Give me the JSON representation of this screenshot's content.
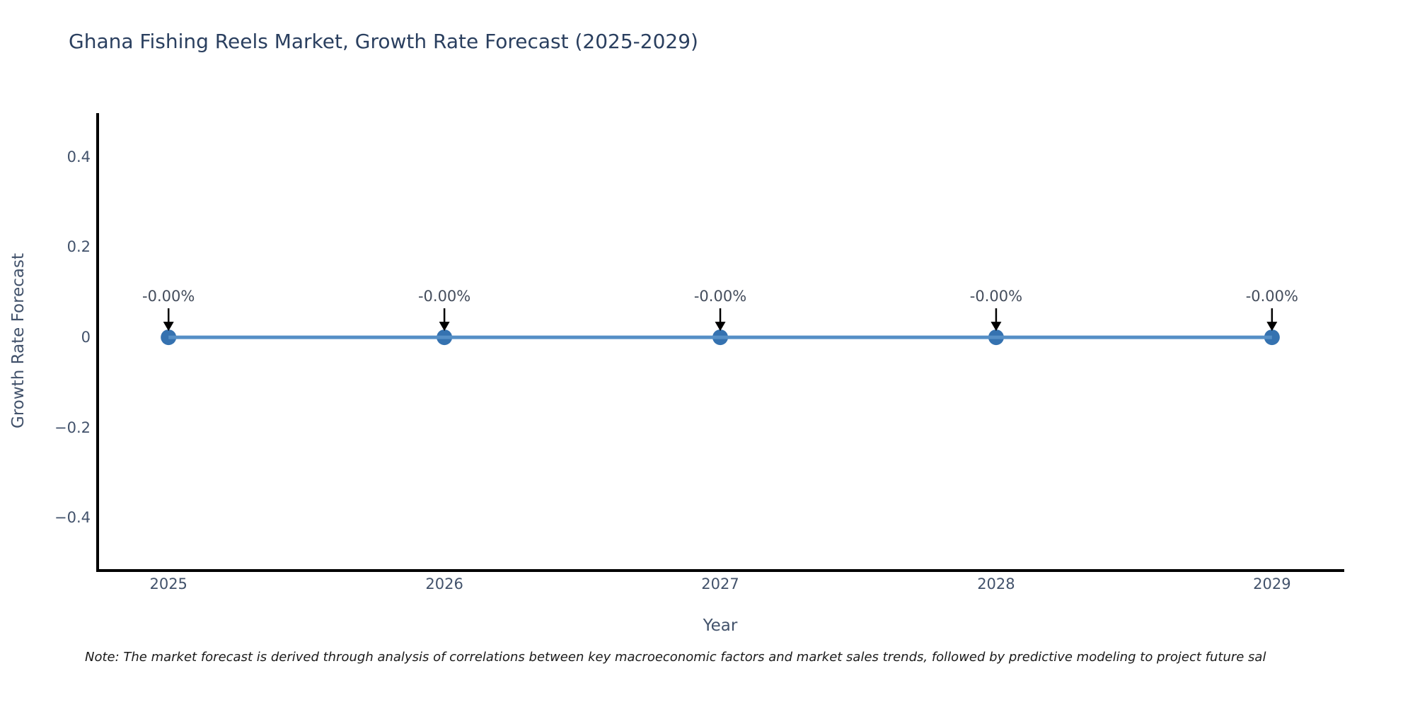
{
  "chart_data": {
    "type": "line",
    "title": "Ghana Fishing Reels Market, Growth Rate Forecast (2025-2029)",
    "xlabel": "Year",
    "ylabel": "Growth Rate Forecast",
    "x": [
      2025,
      2026,
      2027,
      2028,
      2029
    ],
    "xticks": [
      "2025",
      "2026",
      "2027",
      "2028",
      "2029"
    ],
    "series": [
      {
        "name": "Growth Rate Forecast",
        "values": [
          0,
          0,
          0,
          0,
          0
        ],
        "point_labels": [
          "-0.00%",
          "-0.00%",
          "-0.00%",
          "-0.00%",
          "-0.00%"
        ]
      }
    ],
    "yticks": [
      {
        "label": "0.4",
        "value": 0.4
      },
      {
        "label": "0.2",
        "value": 0.2
      },
      {
        "label": "0",
        "value": 0
      },
      {
        "label": "−0.2",
        "value": -0.2
      },
      {
        "label": "−0.4",
        "value": -0.4
      }
    ],
    "xlim": [
      2024.743,
      2029.262
    ],
    "ylim": [
      -0.514,
      0.497
    ],
    "grid": false,
    "legend": "none",
    "annotation_style": "down-arrow-to-point",
    "colors": {
      "line": "#558fc6",
      "marker": "#3572b0",
      "arrow": "#000000",
      "axis_spine": "#000000",
      "title_text": "#2a3f5f",
      "axis_text": "#42526b",
      "annotation_text": "#444d5c",
      "note_text": "#1a1a1a"
    }
  },
  "note": {
    "text": "Note: The market forecast is derived through analysis of correlations between key macroeconomic factors and market sales trends, followed by predictive modeling to project future sal"
  }
}
